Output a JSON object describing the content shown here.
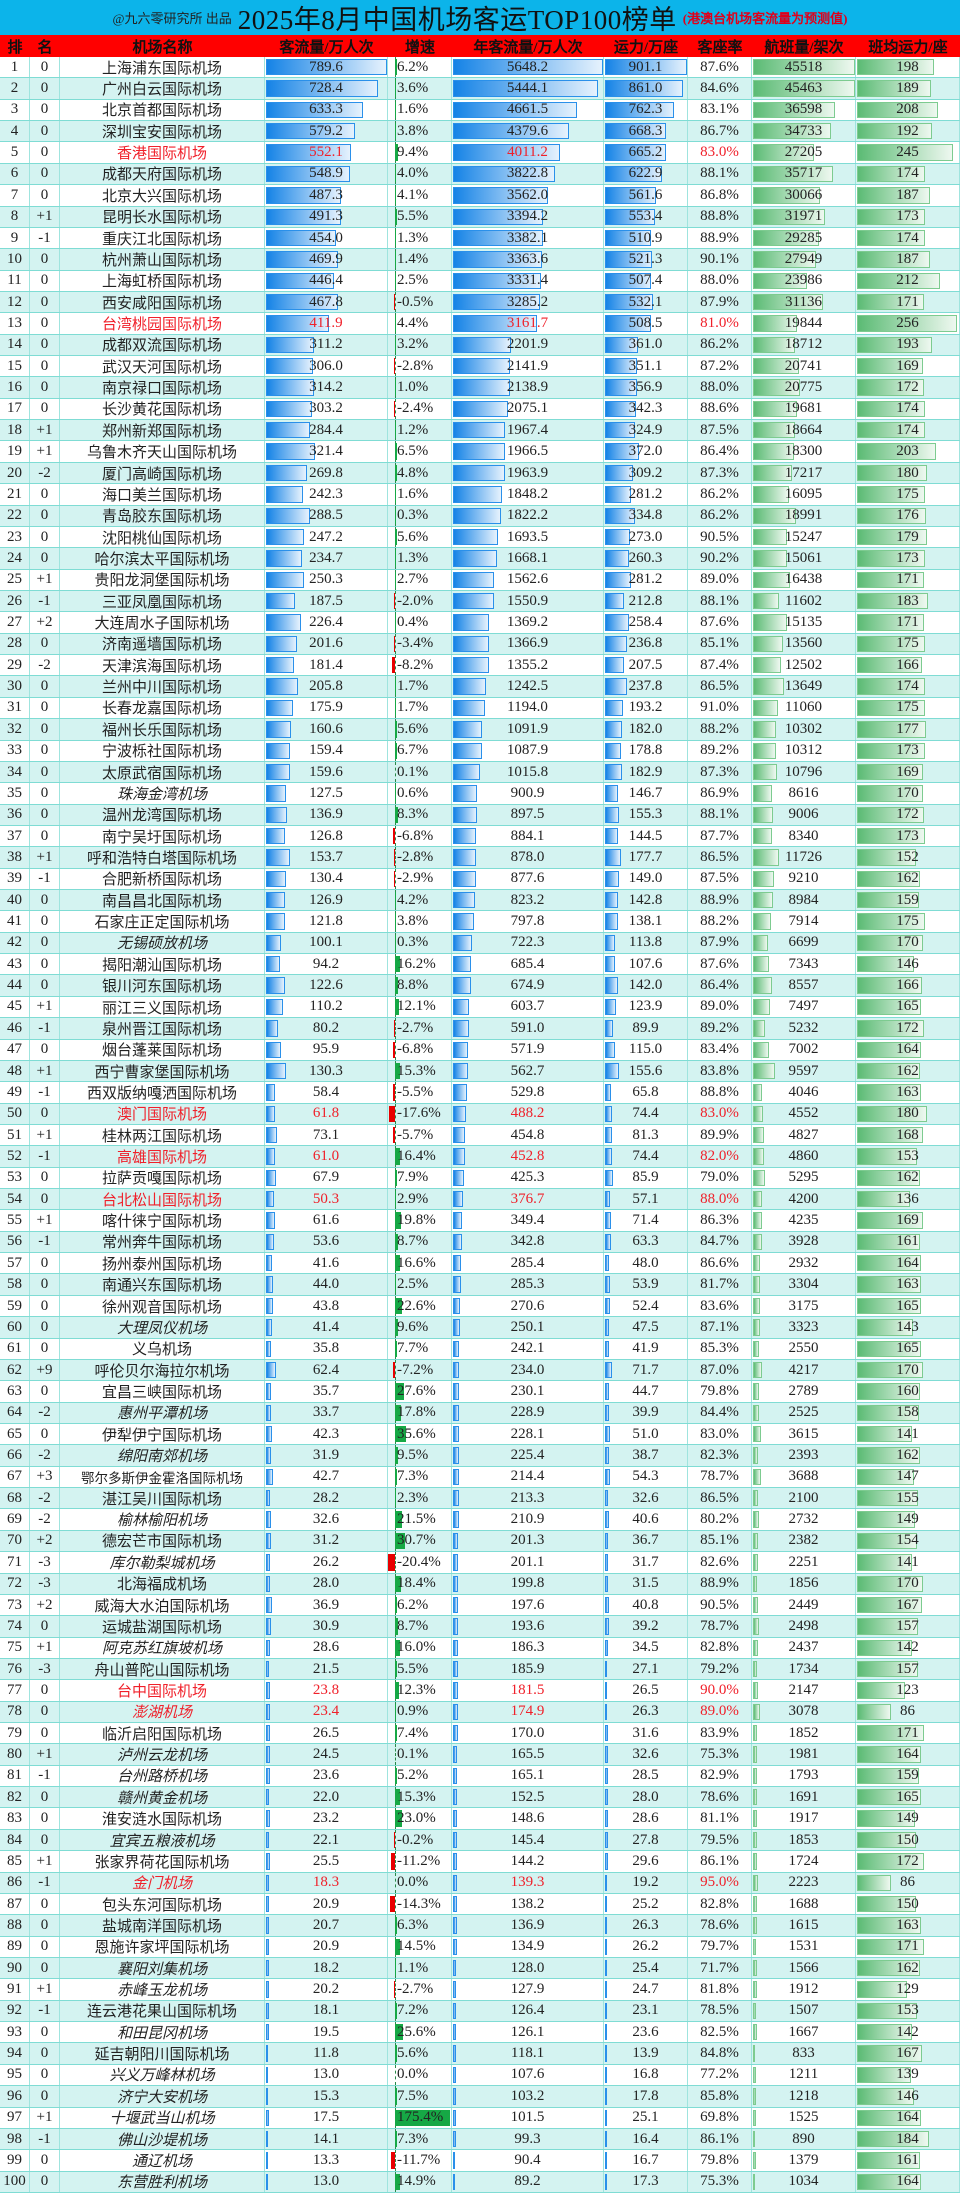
{
  "title": {
    "by": "@九六零研究所 出品",
    "main": "2025年8月中国机场客运TOP100榜单",
    "note": "(港澳台机场客流量为预测值)"
  },
  "headers": [
    "排",
    "名",
    "机场名称",
    "客流量/万人次",
    "增速",
    "年客流量/万人次",
    "运力/万座",
    "客座率",
    "航班量/架次",
    "班均运力/座"
  ],
  "colors": {
    "title_bg": "#0cb4ea",
    "header_bg": "#ff0000",
    "highlight_text": "#f0202a",
    "bar_blue": "#1583e6",
    "bar_green": "#5bbb74",
    "growth_pos": "#16a845",
    "growth_neg": "#e80000"
  },
  "highlighted_ranks": [
    5,
    13,
    50,
    52,
    54,
    77,
    78,
    86
  ],
  "italic_ranks": [
    35,
    42,
    60,
    64,
    66,
    69,
    71,
    75,
    78,
    80,
    81,
    82,
    84,
    86,
    90,
    91,
    93,
    95,
    96,
    97,
    98,
    99,
    100
  ],
  "rows": [
    [
      "1",
      "0",
      "上海浦东国际机场",
      "789.6",
      "6.2%",
      "5648.2",
      "901.1",
      "87.6%",
      "45518",
      "198"
    ],
    [
      "2",
      "0",
      "广州白云国际机场",
      "728.4",
      "3.6%",
      "5444.1",
      "861.0",
      "84.6%",
      "45463",
      "189"
    ],
    [
      "3",
      "0",
      "北京首都国际机场",
      "633.3",
      "1.6%",
      "4661.5",
      "762.3",
      "83.1%",
      "36598",
      "208"
    ],
    [
      "4",
      "0",
      "深圳宝安国际机场",
      "579.2",
      "3.8%",
      "4379.6",
      "668.3",
      "86.7%",
      "34733",
      "192"
    ],
    [
      "5",
      "0",
      "香港国际机场",
      "552.1",
      "9.4%",
      "4011.2",
      "665.2",
      "83.0%",
      "27205",
      "245"
    ],
    [
      "6",
      "0",
      "成都天府国际机场",
      "548.9",
      "4.0%",
      "3822.8",
      "622.9",
      "88.1%",
      "35717",
      "174"
    ],
    [
      "7",
      "0",
      "北京大兴国际机场",
      "487.3",
      "4.1%",
      "3562.0",
      "561.6",
      "86.8%",
      "30066",
      "187"
    ],
    [
      "8",
      "+1",
      "昆明长水国际机场",
      "491.3",
      "5.5%",
      "3394.2",
      "553.4",
      "88.8%",
      "31971",
      "173"
    ],
    [
      "9",
      "-1",
      "重庆江北国际机场",
      "454.0",
      "1.3%",
      "3382.1",
      "510.9",
      "88.9%",
      "29285",
      "174"
    ],
    [
      "10",
      "0",
      "杭州萧山国际机场",
      "469.9",
      "1.4%",
      "3363.6",
      "521.3",
      "90.1%",
      "27949",
      "187"
    ],
    [
      "11",
      "0",
      "上海虹桥国际机场",
      "446.4",
      "2.5%",
      "3331.4",
      "507.4",
      "88.0%",
      "23986",
      "212"
    ],
    [
      "12",
      "0",
      "西安咸阳国际机场",
      "467.8",
      "-0.5%",
      "3285.2",
      "532.1",
      "87.9%",
      "31136",
      "171"
    ],
    [
      "13",
      "0",
      "台湾桃园国际机场",
      "411.9",
      "4.4%",
      "3161.7",
      "508.5",
      "81.0%",
      "19844",
      "256"
    ],
    [
      "14",
      "0",
      "成都双流国际机场",
      "311.2",
      "3.2%",
      "2201.9",
      "361.0",
      "86.2%",
      "18712",
      "193"
    ],
    [
      "15",
      "0",
      "武汉天河国际机场",
      "306.0",
      "-2.8%",
      "2141.9",
      "351.1",
      "87.2%",
      "20741",
      "169"
    ],
    [
      "16",
      "0",
      "南京禄口国际机场",
      "314.2",
      "1.0%",
      "2138.9",
      "356.9",
      "88.0%",
      "20775",
      "172"
    ],
    [
      "17",
      "0",
      "长沙黄花国际机场",
      "303.2",
      "-2.4%",
      "2075.1",
      "342.3",
      "88.6%",
      "19681",
      "174"
    ],
    [
      "18",
      "+1",
      "郑州新郑国际机场",
      "284.4",
      "1.2%",
      "1967.4",
      "324.9",
      "87.5%",
      "18664",
      "174"
    ],
    [
      "19",
      "+1",
      "乌鲁木齐天山国际机场",
      "321.4",
      "6.5%",
      "1966.5",
      "372.0",
      "86.4%",
      "18300",
      "203"
    ],
    [
      "20",
      "-2",
      "厦门高崎国际机场",
      "269.8",
      "4.8%",
      "1963.9",
      "309.2",
      "87.3%",
      "17217",
      "180"
    ],
    [
      "21",
      "0",
      "海口美兰国际机场",
      "242.3",
      "1.6%",
      "1848.2",
      "281.2",
      "86.2%",
      "16095",
      "175"
    ],
    [
      "22",
      "0",
      "青岛胶东国际机场",
      "288.5",
      "0.3%",
      "1822.2",
      "334.8",
      "86.2%",
      "18991",
      "176"
    ],
    [
      "23",
      "0",
      "沈阳桃仙国际机场",
      "247.2",
      "5.6%",
      "1693.5",
      "273.0",
      "90.5%",
      "15247",
      "179"
    ],
    [
      "24",
      "0",
      "哈尔滨太平国际机场",
      "234.7",
      "1.3%",
      "1668.1",
      "260.3",
      "90.2%",
      "15061",
      "173"
    ],
    [
      "25",
      "+1",
      "贵阳龙洞堡国际机场",
      "250.3",
      "2.7%",
      "1562.6",
      "281.2",
      "89.0%",
      "16438",
      "171"
    ],
    [
      "26",
      "-1",
      "三亚凤凰国际机场",
      "187.5",
      "-2.0%",
      "1550.9",
      "212.8",
      "88.1%",
      "11602",
      "183"
    ],
    [
      "27",
      "+2",
      "大连周水子国际机场",
      "226.4",
      "0.4%",
      "1369.2",
      "258.4",
      "87.6%",
      "15135",
      "171"
    ],
    [
      "28",
      "0",
      "济南遥墙国际机场",
      "201.6",
      "-3.4%",
      "1366.9",
      "236.8",
      "85.1%",
      "13560",
      "175"
    ],
    [
      "29",
      "-2",
      "天津滨海国际机场",
      "181.4",
      "-8.2%",
      "1355.2",
      "207.5",
      "87.4%",
      "12502",
      "166"
    ],
    [
      "30",
      "0",
      "兰州中川国际机场",
      "205.8",
      "1.7%",
      "1242.5",
      "237.8",
      "86.5%",
      "13649",
      "174"
    ],
    [
      "31",
      "0",
      "长春龙嘉国际机场",
      "175.9",
      "1.7%",
      "1194.0",
      "193.2",
      "91.0%",
      "11060",
      "175"
    ],
    [
      "32",
      "0",
      "福州长乐国际机场",
      "160.6",
      "5.6%",
      "1091.9",
      "182.0",
      "88.2%",
      "10302",
      "177"
    ],
    [
      "33",
      "0",
      "宁波栎社国际机场",
      "159.4",
      "6.7%",
      "1087.9",
      "178.8",
      "89.2%",
      "10312",
      "173"
    ],
    [
      "34",
      "0",
      "太原武宿国际机场",
      "159.6",
      "0.1%",
      "1015.8",
      "182.9",
      "87.3%",
      "10796",
      "169"
    ],
    [
      "35",
      "0",
      "珠海金湾机场",
      "127.5",
      "0.6%",
      "900.9",
      "146.7",
      "86.9%",
      "8616",
      "170"
    ],
    [
      "36",
      "0",
      "温州龙湾国际机场",
      "136.9",
      "8.3%",
      "897.5",
      "155.3",
      "88.1%",
      "9006",
      "172"
    ],
    [
      "37",
      "0",
      "南宁吴圩国际机场",
      "126.8",
      "-6.8%",
      "884.1",
      "144.5",
      "87.7%",
      "8340",
      "173"
    ],
    [
      "38",
      "+1",
      "呼和浩特白塔国际机场",
      "153.7",
      "-2.8%",
      "878.0",
      "177.7",
      "86.5%",
      "11726",
      "152"
    ],
    [
      "39",
      "-1",
      "合肥新桥国际机场",
      "130.4",
      "-2.9%",
      "877.6",
      "149.0",
      "87.5%",
      "9210",
      "162"
    ],
    [
      "40",
      "0",
      "南昌昌北国际机场",
      "126.9",
      "4.2%",
      "823.2",
      "142.8",
      "88.9%",
      "8984",
      "159"
    ],
    [
      "41",
      "0",
      "石家庄正定国际机场",
      "121.8",
      "3.8%",
      "797.8",
      "138.1",
      "88.2%",
      "7914",
      "175"
    ],
    [
      "42",
      "0",
      "无锡硕放机场",
      "100.1",
      "0.3%",
      "722.3",
      "113.8",
      "87.9%",
      "6699",
      "170"
    ],
    [
      "43",
      "0",
      "揭阳潮汕国际机场",
      "94.2",
      "16.2%",
      "685.4",
      "107.6",
      "87.6%",
      "7343",
      "146"
    ],
    [
      "44",
      "0",
      "银川河东国际机场",
      "122.6",
      "8.8%",
      "674.9",
      "142.0",
      "86.4%",
      "8557",
      "166"
    ],
    [
      "45",
      "+1",
      "丽江三义国际机场",
      "110.2",
      "12.1%",
      "603.7",
      "123.9",
      "89.0%",
      "7497",
      "165"
    ],
    [
      "46",
      "-1",
      "泉州晋江国际机场",
      "80.2",
      "-2.7%",
      "591.0",
      "89.9",
      "89.2%",
      "5232",
      "172"
    ],
    [
      "47",
      "0",
      "烟台蓬莱国际机场",
      "95.9",
      "-6.8%",
      "571.9",
      "115.0",
      "83.4%",
      "7002",
      "164"
    ],
    [
      "48",
      "+1",
      "西宁曹家堡国际机场",
      "130.3",
      "15.3%",
      "562.7",
      "155.6",
      "83.8%",
      "9597",
      "162"
    ],
    [
      "49",
      "-1",
      "西双版纳嘎洒国际机场",
      "58.4",
      "-5.5%",
      "529.8",
      "65.8",
      "88.8%",
      "4046",
      "163"
    ],
    [
      "50",
      "0",
      "澳门国际机场",
      "61.8",
      "-17.6%",
      "488.2",
      "74.4",
      "83.0%",
      "4552",
      "180"
    ],
    [
      "51",
      "+1",
      "桂林两江国际机场",
      "73.1",
      "-5.7%",
      "454.8",
      "81.3",
      "89.9%",
      "4827",
      "168"
    ],
    [
      "52",
      "-1",
      "高雄国际机场",
      "61.0",
      "16.4%",
      "452.8",
      "74.4",
      "82.0%",
      "4860",
      "153"
    ],
    [
      "53",
      "0",
      "拉萨贡嘎国际机场",
      "67.9",
      "7.9%",
      "425.3",
      "85.9",
      "79.0%",
      "5295",
      "162"
    ],
    [
      "54",
      "0",
      "台北松山国际机场",
      "50.3",
      "2.9%",
      "376.7",
      "57.1",
      "88.0%",
      "4200",
      "136"
    ],
    [
      "55",
      "+1",
      "喀什徕宁国际机场",
      "61.6",
      "19.8%",
      "349.4",
      "71.4",
      "86.3%",
      "4235",
      "169"
    ],
    [
      "56",
      "-1",
      "常州奔牛国际机场",
      "53.6",
      "8.7%",
      "342.8",
      "63.3",
      "84.7%",
      "3928",
      "161"
    ],
    [
      "57",
      "0",
      "扬州泰州国际机场",
      "41.6",
      "16.6%",
      "285.4",
      "48.0",
      "86.6%",
      "2932",
      "164"
    ],
    [
      "58",
      "0",
      "南通兴东国际机场",
      "44.0",
      "2.5%",
      "285.3",
      "53.9",
      "81.7%",
      "3304",
      "163"
    ],
    [
      "59",
      "0",
      "徐州观音国际机场",
      "43.8",
      "22.6%",
      "270.6",
      "52.4",
      "83.6%",
      "3175",
      "165"
    ],
    [
      "60",
      "0",
      "大理凤仪机场",
      "41.4",
      "9.6%",
      "250.1",
      "47.5",
      "87.1%",
      "3323",
      "143"
    ],
    [
      "61",
      "0",
      "义乌机场",
      "35.8",
      "7.7%",
      "242.1",
      "41.9",
      "85.3%",
      "2550",
      "165"
    ],
    [
      "62",
      "+9",
      "呼伦贝尔海拉尔机场",
      "62.4",
      "-7.2%",
      "234.0",
      "71.7",
      "87.0%",
      "4217",
      "170"
    ],
    [
      "63",
      "0",
      "宜昌三峡国际机场",
      "35.7",
      "27.6%",
      "230.1",
      "44.7",
      "79.8%",
      "2789",
      "160"
    ],
    [
      "64",
      "-2",
      "惠州平潭机场",
      "33.7",
      "17.8%",
      "228.9",
      "39.9",
      "84.4%",
      "2525",
      "158"
    ],
    [
      "65",
      "0",
      "伊犁伊宁国际机场",
      "42.3",
      "35.6%",
      "228.1",
      "51.0",
      "83.0%",
      "3615",
      "141"
    ],
    [
      "66",
      "-2",
      "绵阳南郊机场",
      "31.9",
      "9.5%",
      "225.4",
      "38.7",
      "82.3%",
      "2393",
      "162"
    ],
    [
      "67",
      "+3",
      "鄂尔多斯伊金霍洛国际机场",
      "42.7",
      "7.3%",
      "214.4",
      "54.3",
      "78.7%",
      "3688",
      "147"
    ],
    [
      "68",
      "-2",
      "湛江吴川国际机场",
      "28.2",
      "2.3%",
      "213.3",
      "32.6",
      "86.5%",
      "2100",
      "155"
    ],
    [
      "69",
      "-2",
      "榆林榆阳机场",
      "32.6",
      "21.5%",
      "210.9",
      "40.6",
      "80.2%",
      "2732",
      "149"
    ],
    [
      "70",
      "+2",
      "德宏芒市国际机场",
      "31.2",
      "30.7%",
      "201.3",
      "36.7",
      "85.1%",
      "2382",
      "154"
    ],
    [
      "71",
      "-3",
      "库尔勒梨城机场",
      "26.2",
      "-20.4%",
      "201.1",
      "31.7",
      "82.6%",
      "2251",
      "141"
    ],
    [
      "72",
      "-3",
      "北海福成机场",
      "28.0",
      "18.4%",
      "199.8",
      "31.5",
      "88.9%",
      "1856",
      "170"
    ],
    [
      "73",
      "+2",
      "威海大水泊国际机场",
      "36.9",
      "6.2%",
      "197.6",
      "40.8",
      "90.5%",
      "2449",
      "167"
    ],
    [
      "74",
      "0",
      "运城盐湖国际机场",
      "30.9",
      "8.7%",
      "193.6",
      "39.2",
      "78.7%",
      "2498",
      "157"
    ],
    [
      "75",
      "+1",
      "阿克苏红旗坡机场",
      "28.6",
      "16.0%",
      "186.3",
      "34.5",
      "82.8%",
      "2437",
      "142"
    ],
    [
      "76",
      "-3",
      "舟山普陀山国际机场",
      "21.5",
      "5.5%",
      "185.9",
      "27.1",
      "79.2%",
      "1734",
      "157"
    ],
    [
      "77",
      "0",
      "台中国际机场",
      "23.8",
      "12.3%",
      "181.5",
      "26.5",
      "90.0%",
      "2147",
      "123"
    ],
    [
      "78",
      "0",
      "澎湖机场",
      "23.4",
      "0.9%",
      "174.9",
      "26.3",
      "89.0%",
      "3078",
      "86"
    ],
    [
      "79",
      "0",
      "临沂启阳国际机场",
      "26.5",
      "7.4%",
      "170.0",
      "31.6",
      "83.9%",
      "1852",
      "171"
    ],
    [
      "80",
      "+1",
      "泸州云龙机场",
      "24.5",
      "0.1%",
      "165.5",
      "32.6",
      "75.3%",
      "1981",
      "164"
    ],
    [
      "81",
      "-1",
      "台州路桥机场",
      "23.6",
      "5.2%",
      "165.1",
      "28.5",
      "82.9%",
      "1793",
      "159"
    ],
    [
      "82",
      "0",
      "赣州黄金机场",
      "22.0",
      "15.3%",
      "152.5",
      "28.0",
      "78.6%",
      "1691",
      "165"
    ],
    [
      "83",
      "0",
      "淮安涟水国际机场",
      "23.2",
      "23.0%",
      "148.6",
      "28.6",
      "81.1%",
      "1917",
      "149"
    ],
    [
      "84",
      "0",
      "宜宾五粮液机场",
      "22.1",
      "-0.2%",
      "145.4",
      "27.8",
      "79.5%",
      "1853",
      "150"
    ],
    [
      "85",
      "+1",
      "张家界荷花国际机场",
      "25.5",
      "-11.2%",
      "144.2",
      "29.6",
      "86.1%",
      "1724",
      "172"
    ],
    [
      "86",
      "-1",
      "金门机场",
      "18.3",
      "0.0%",
      "139.3",
      "19.2",
      "95.0%",
      "2223",
      "86"
    ],
    [
      "87",
      "0",
      "包头东河国际机场",
      "20.9",
      "-14.3%",
      "138.2",
      "25.2",
      "82.8%",
      "1688",
      "150"
    ],
    [
      "88",
      "0",
      "盐城南洋国际机场",
      "20.7",
      "6.3%",
      "136.9",
      "26.3",
      "78.6%",
      "1615",
      "163"
    ],
    [
      "89",
      "0",
      "恩施许家坪国际机场",
      "20.9",
      "14.5%",
      "134.9",
      "26.2",
      "79.7%",
      "1531",
      "171"
    ],
    [
      "90",
      "0",
      "襄阳刘集机场",
      "18.2",
      "1.1%",
      "128.0",
      "25.4",
      "71.7%",
      "1566",
      "162"
    ],
    [
      "91",
      "+1",
      "赤峰玉龙机场",
      "20.2",
      "-2.7%",
      "127.9",
      "24.7",
      "81.8%",
      "1912",
      "129"
    ],
    [
      "92",
      "-1",
      "连云港花果山国际机场",
      "18.1",
      "7.2%",
      "126.4",
      "23.1",
      "78.5%",
      "1507",
      "153"
    ],
    [
      "93",
      "0",
      "和田昆冈机场",
      "19.5",
      "25.6%",
      "126.1",
      "23.6",
      "82.5%",
      "1667",
      "142"
    ],
    [
      "94",
      "0",
      "延吉朝阳川国际机场",
      "11.8",
      "5.6%",
      "118.1",
      "13.9",
      "84.8%",
      "833",
      "167"
    ],
    [
      "95",
      "0",
      "兴义万峰林机场",
      "13.0",
      "0.0%",
      "107.6",
      "16.8",
      "77.2%",
      "1211",
      "139"
    ],
    [
      "96",
      "0",
      "济宁大安机场",
      "15.3",
      "7.5%",
      "103.2",
      "17.8",
      "85.8%",
      "1218",
      "146"
    ],
    [
      "97",
      "+1",
      "十堰武当山机场",
      "17.5",
      "175.4%",
      "101.5",
      "25.1",
      "69.8%",
      "1525",
      "164"
    ],
    [
      "98",
      "-1",
      "佛山沙堤机场",
      "14.1",
      "7.3%",
      "99.3",
      "16.4",
      "86.1%",
      "890",
      "184"
    ],
    [
      "99",
      "0",
      "通辽机场",
      "13.3",
      "-11.7%",
      "90.4",
      "16.7",
      "79.8%",
      "1379",
      "161"
    ],
    [
      "100",
      "0",
      "东营胜利机场",
      "13.0",
      "14.9%",
      "89.2",
      "17.3",
      "75.3%",
      "1034",
      "164"
    ]
  ]
}
